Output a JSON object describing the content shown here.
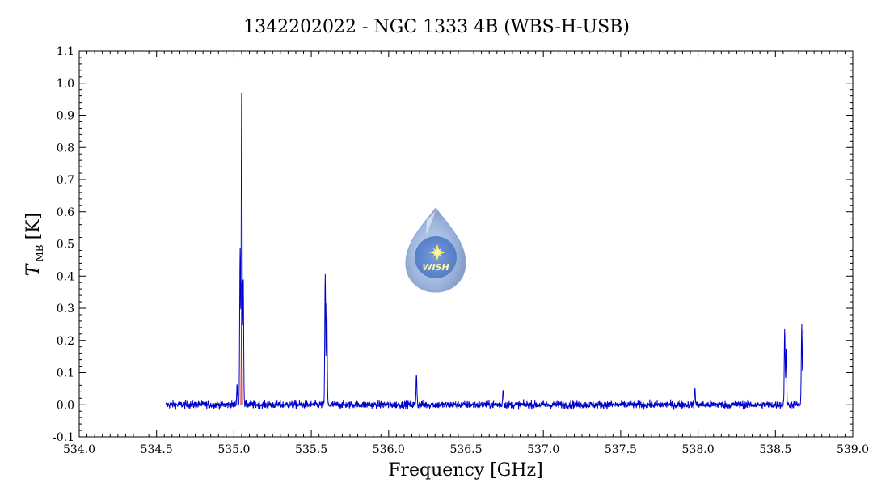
{
  "chart_data": {
    "type": "line",
    "title": "1342202022 - NGC 1333 4B (WBS-H-USB)",
    "xlabel": "Frequency [GHz]",
    "ylabel": "T",
    "ylabel_sub": "MB",
    "ylabel_unit": "[K]",
    "xlim": [
      534.0,
      539.0
    ],
    "ylim": [
      -0.1,
      1.1
    ],
    "x_ticks": [
      "534.0",
      "534.5",
      "535.0",
      "535.5",
      "536.0",
      "536.5",
      "537.0",
      "537.5",
      "538.0",
      "538.5",
      "539.0"
    ],
    "y_ticks": [
      "-0.1",
      "0.0",
      "0.1",
      "0.2",
      "0.3",
      "0.4",
      "0.5",
      "0.6",
      "0.7",
      "0.8",
      "0.9",
      "1.0",
      "1.1"
    ],
    "grid": false,
    "series": [
      {
        "color": "#0000cc",
        "x_range": [
          534.56,
          538.68
        ],
        "baseline_noise": 0.012,
        "peaks": [
          {
            "x": 535.02,
            "y": 0.06
          },
          {
            "x": 535.04,
            "y": 0.48
          },
          {
            "x": 535.05,
            "y": 0.98
          },
          {
            "x": 535.06,
            "y": 0.4
          },
          {
            "x": 535.59,
            "y": 0.41
          },
          {
            "x": 535.6,
            "y": 0.32
          },
          {
            "x": 536.18,
            "y": 0.1
          },
          {
            "x": 536.74,
            "y": 0.05
          },
          {
            "x": 537.98,
            "y": 0.05
          },
          {
            "x": 538.56,
            "y": 0.24
          },
          {
            "x": 538.57,
            "y": 0.17
          },
          {
            "x": 538.67,
            "y": 0.24
          },
          {
            "x": 538.68,
            "y": 0.24
          }
        ]
      }
    ],
    "overlay_series": {
      "color": "#cc0000",
      "points": [
        [
          535.045,
          0.0
        ],
        [
          535.05,
          0.38
        ],
        [
          535.055,
          0.0
        ]
      ]
    },
    "logo": {
      "label": "WISH",
      "icon": "wish-droplet-logo"
    }
  }
}
